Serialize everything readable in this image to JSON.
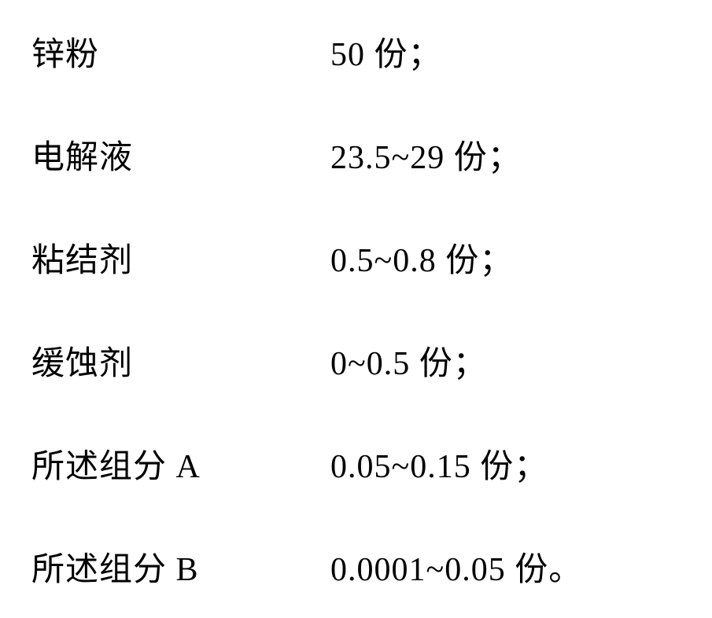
{
  "rows": [
    {
      "label": "锌粉",
      "value": "50 份；"
    },
    {
      "label": "电解液",
      "value": "23.5~29 份；"
    },
    {
      "label": "粘结剂",
      "value": "0.5~0.8 份；"
    },
    {
      "label": "缓蚀剂",
      "value": "0~0.5 份；"
    },
    {
      "label": "所述组分 A",
      "value": "0.05~0.15 份；"
    },
    {
      "label": "所述组分 B",
      "value": "0.0001~0.05 份。"
    }
  ],
  "style": {
    "background_color": "#ffffff",
    "text_color": "#000000",
    "label_fontsize": 42,
    "value_fontsize": 42,
    "row_spacing": 70,
    "label_width": 380,
    "font_family_cjk": "SimSun",
    "font_family_latin": "Times New Roman"
  }
}
